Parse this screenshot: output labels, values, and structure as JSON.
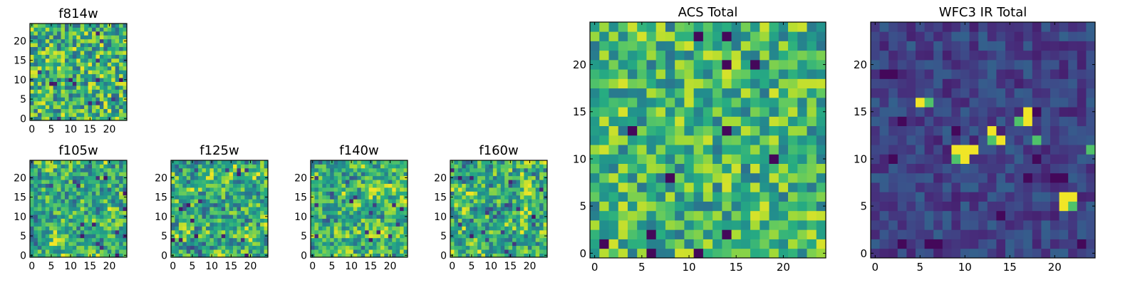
{
  "figure": {
    "description_free": true
  },
  "colormap": "viridis",
  "chart_data": [
    {
      "type": "heatmap",
      "title": "f814w",
      "grid": {
        "rows": 25,
        "cols": 25
      },
      "xlim": [
        -0.5,
        24.5
      ],
      "ylim": [
        -0.5,
        24.5
      ],
      "xticks": [
        0,
        5,
        10,
        15,
        20
      ],
      "yticks": [
        0,
        5,
        10,
        15,
        20
      ],
      "seed": 814,
      "value_range": [
        0,
        1
      ],
      "mean": 0.65,
      "spread": 0.35
    },
    {
      "type": "heatmap",
      "title": "f105w",
      "grid": {
        "rows": 25,
        "cols": 25
      },
      "xlim": [
        -0.5,
        24.5
      ],
      "ylim": [
        -0.5,
        24.5
      ],
      "xticks": [
        0,
        5,
        10,
        15,
        20
      ],
      "yticks": [
        0,
        5,
        10,
        15,
        20
      ],
      "seed": 105,
      "value_range": [
        0,
        1
      ],
      "mean": 0.62,
      "spread": 0.3,
      "smooth": true
    },
    {
      "type": "heatmap",
      "title": "f125w",
      "grid": {
        "rows": 25,
        "cols": 25
      },
      "xlim": [
        -0.5,
        24.5
      ],
      "ylim": [
        -0.5,
        24.5
      ],
      "xticks": [
        0,
        5,
        10,
        15,
        20
      ],
      "yticks": [
        0,
        5,
        10,
        15,
        20
      ],
      "seed": 125,
      "value_range": [
        0,
        1
      ],
      "mean": 0.62,
      "spread": 0.32,
      "smooth": true
    },
    {
      "type": "heatmap",
      "title": "f140w",
      "grid": {
        "rows": 25,
        "cols": 25
      },
      "xlim": [
        -0.5,
        24.5
      ],
      "ylim": [
        -0.5,
        24.5
      ],
      "xticks": [
        0,
        5,
        10,
        15,
        20
      ],
      "yticks": [
        0,
        5,
        10,
        15,
        20
      ],
      "seed": 140,
      "value_range": [
        0,
        1
      ],
      "mean": 0.66,
      "spread": 0.3,
      "smooth": true
    },
    {
      "type": "heatmap",
      "title": "f160w",
      "grid": {
        "rows": 25,
        "cols": 25
      },
      "xlim": [
        -0.5,
        24.5
      ],
      "ylim": [
        -0.5,
        24.5
      ],
      "xticks": [
        0,
        5,
        10,
        15,
        20
      ],
      "yticks": [
        0,
        5,
        10,
        15,
        20
      ],
      "seed": 160,
      "value_range": [
        0,
        1
      ],
      "mean": 0.63,
      "spread": 0.32,
      "smooth": true
    },
    {
      "type": "heatmap",
      "title": "ACS Total",
      "grid": {
        "rows": 25,
        "cols": 25
      },
      "xlim": [
        -0.5,
        24.5
      ],
      "ylim": [
        -0.5,
        24.5
      ],
      "xticks": [
        0,
        5,
        10,
        15,
        20
      ],
      "yticks": [
        0,
        5,
        10,
        15,
        20
      ],
      "seed": 7,
      "value_range": [
        0,
        1
      ],
      "mean": 0.66,
      "spread": 0.3,
      "hot_cells": [],
      "cold_cells": [
        [
          4,
          13
        ],
        [
          11,
          23
        ],
        [
          14,
          23
        ],
        [
          14,
          13
        ],
        [
          19,
          10
        ],
        [
          8,
          8
        ],
        [
          14,
          2
        ],
        [
          6,
          2
        ],
        [
          1,
          1
        ],
        [
          11,
          0
        ],
        [
          6,
          0
        ],
        [
          14,
          20
        ],
        [
          17,
          20
        ]
      ]
    },
    {
      "type": "heatmap",
      "title": "WFC3 IR Total",
      "grid": {
        "rows": 25,
        "cols": 25
      },
      "xlim": [
        -0.5,
        24.5
      ],
      "ylim": [
        -0.5,
        24.5
      ],
      "xticks": [
        0,
        5,
        10,
        15,
        20
      ],
      "yticks": [
        0,
        5,
        10,
        15,
        20
      ],
      "seed": 31,
      "value_range": [
        0,
        1
      ],
      "mean": 0.2,
      "spread": 0.12,
      "hot_cells": [
        [
          5,
          16
        ],
        [
          17,
          15
        ],
        [
          17,
          14
        ],
        [
          13,
          13
        ],
        [
          14,
          12
        ],
        [
          10,
          11
        ],
        [
          9,
          11
        ],
        [
          11,
          11
        ],
        [
          10,
          10
        ],
        [
          21,
          6
        ],
        [
          22,
          6
        ],
        [
          21,
          5
        ]
      ],
      "warm_cells": [
        [
          6,
          16
        ],
        [
          16,
          14
        ],
        [
          13,
          12
        ],
        [
          18,
          12
        ],
        [
          9,
          10
        ],
        [
          24,
          11
        ],
        [
          22,
          5
        ]
      ],
      "cold_cells": [
        [
          1,
          19
        ],
        [
          2,
          19
        ],
        [
          18,
          15
        ],
        [
          3,
          14
        ],
        [
          18,
          10
        ],
        [
          2,
          10
        ],
        [
          20,
          8
        ],
        [
          21,
          8
        ],
        [
          17,
          8
        ],
        [
          3,
          1
        ],
        [
          7,
          1
        ],
        [
          6,
          1
        ],
        [
          23,
          1
        ],
        [
          14,
          4
        ],
        [
          9,
          13
        ]
      ]
    }
  ]
}
